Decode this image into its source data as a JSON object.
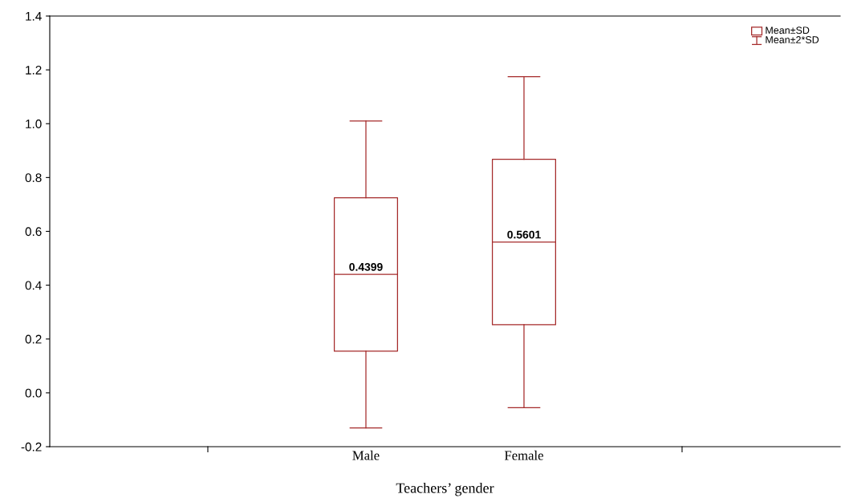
{
  "chart_data": {
    "type": "box",
    "xlabel": "Teachers’ gender",
    "categories": [
      "Male",
      "Female"
    ],
    "color": "#a52a2a",
    "boxes": [
      {
        "low": -0.13,
        "q1": 0.155,
        "median": 0.4399,
        "q3": 0.725,
        "high": 1.01
      },
      {
        "low": -0.055,
        "q1": 0.253,
        "median": 0.5601,
        "q3": 0.868,
        "high": 1.175
      }
    ],
    "ylim": [
      -0.2,
      1.4
    ],
    "yticks": [
      -0.2,
      {
        "value": 0,
        "label": "0.0"
      },
      0.2,
      0.4,
      0.6,
      0.8,
      {
        "value": 1,
        "label": "1.0"
      },
      1.2,
      1.4
    ],
    "annotations": [
      "Mean±SD",
      "Mean±2*SD",
      "0.4399",
      "0.5601"
    ],
    "grid": false
  }
}
